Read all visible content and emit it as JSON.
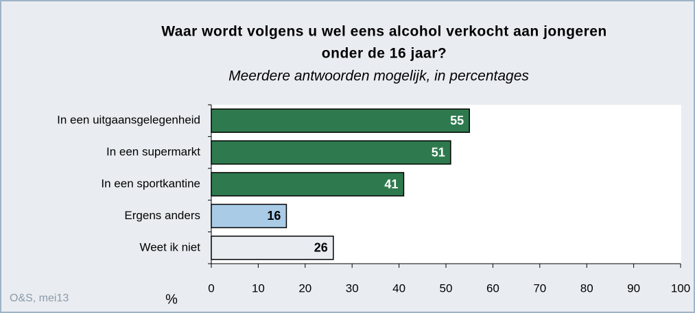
{
  "chart_data": {
    "type": "bar",
    "orientation": "horizontal",
    "title": [
      "Waar wordt volgens u wel eens alcohol verkocht aan jongeren",
      "onder de 16 jaar?"
    ],
    "subtitle": "Meerdere antwoorden mogelijk, in percentages",
    "categories": [
      "In een uitgaansgelegenheid",
      "In een supermarkt",
      "In een sportkantine",
      "Ergens anders",
      "Weet ik niet"
    ],
    "values": [
      55,
      51,
      41,
      16,
      26
    ],
    "colors": [
      "#2e7a4e",
      "#2e7a4e",
      "#2e7a4e",
      "#a9cbe6",
      "#e9edf2"
    ],
    "xlim": [
      0,
      100
    ],
    "xticks": [
      0,
      10,
      20,
      30,
      40,
      50,
      60,
      70,
      80,
      90,
      100
    ],
    "xlabel": "%",
    "source": "O&S, mei13"
  }
}
